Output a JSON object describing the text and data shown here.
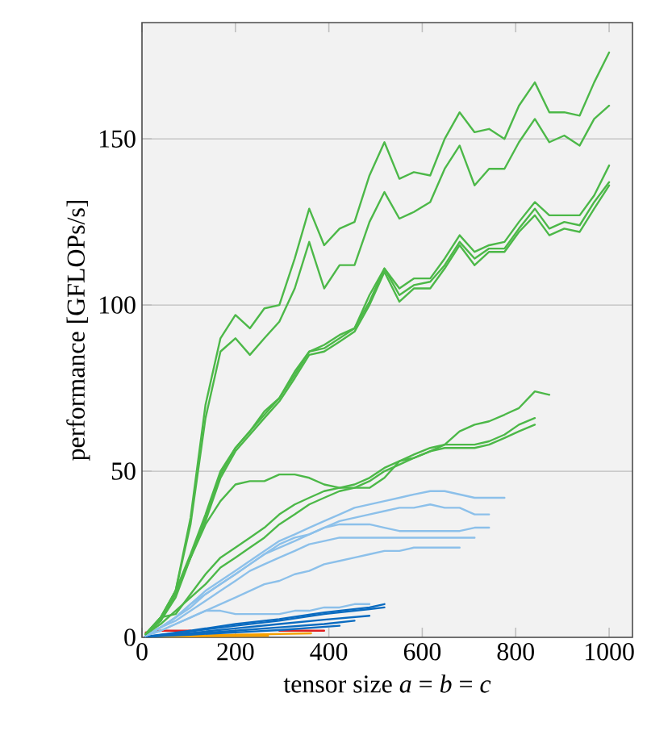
{
  "chart_data": {
    "type": "line",
    "xlabel": "tensor size *a* = *b* = *c*",
    "ylabel": "performance [GFLOPs/s]",
    "xlim": [
      0,
      1050
    ],
    "ylim": [
      0,
      185
    ],
    "xticks": [
      0,
      200,
      400,
      600,
      800,
      1000
    ],
    "yticks": [
      0,
      50,
      100,
      150
    ],
    "grid": "y",
    "series": [
      {
        "color": "#e02020",
        "x": [
          8,
          40,
          104,
          200,
          294,
          390
        ],
        "values": [
          1.5,
          2,
          2,
          null,
          2,
          2
        ]
      },
      {
        "color": "#f5a000",
        "x": [
          8,
          104,
          200,
          294,
          362
        ],
        "values": [
          0.3,
          0.5,
          0.8,
          1,
          1.2
        ]
      },
      {
        "color": "#f5a000",
        "x": [
          8,
          104,
          200,
          270
        ],
        "values": [
          0.2,
          0.3,
          0.4,
          0.5
        ]
      },
      {
        "color": "#0a6bc0",
        "x": [
          8,
          104,
          200,
          294,
          390,
          487,
          519
        ],
        "values": [
          0.2,
          2,
          4,
          5.5,
          7.5,
          9,
          10
        ]
      },
      {
        "color": "#0a6bc0",
        "x": [
          8,
          104,
          200,
          294,
          390,
          487,
          519
        ],
        "values": [
          0.2,
          1.8,
          3.5,
          5,
          7,
          8.5,
          9
        ]
      },
      {
        "color": "#0a6bc0",
        "x": [
          8,
          104,
          200,
          294,
          390,
          487
        ],
        "values": [
          0.2,
          1.3,
          2.7,
          4,
          5.3,
          6.5
        ]
      },
      {
        "color": "#0a6bc0",
        "x": [
          8,
          104,
          200,
          294,
          390,
          455
        ],
        "values": [
          0.2,
          1,
          2,
          3,
          4,
          5
        ]
      },
      {
        "color": "#0a6bc0",
        "x": [
          8,
          104,
          200,
          294,
          423
        ],
        "values": [
          0.2,
          0.8,
          1.5,
          2.2,
          3.5
        ]
      },
      {
        "color": "#8cc0ea",
        "x": [
          8,
          40,
          72,
          104,
          136,
          168,
          200,
          231,
          262,
          294,
          327,
          358,
          390,
          423,
          455,
          487,
          519,
          551,
          582,
          617,
          648,
          680,
          712,
          743,
          776
        ],
        "values": [
          0.5,
          3,
          6,
          10,
          14,
          17,
          20,
          23,
          26,
          29,
          31,
          33,
          35,
          37,
          39,
          40,
          41,
          42,
          43,
          44,
          44,
          43,
          42,
          42,
          42
        ]
      },
      {
        "color": "#8cc0ea",
        "x": [
          8,
          40,
          72,
          104,
          136,
          168,
          200,
          231,
          262,
          294,
          327,
          358,
          390,
          423,
          455,
          487,
          519,
          551,
          582,
          617,
          648,
          680,
          712,
          743
        ],
        "values": [
          0.5,
          3,
          6,
          10,
          13,
          16,
          19,
          22,
          25,
          27,
          29,
          31,
          33,
          35,
          36,
          37,
          38,
          39,
          39,
          40,
          39,
          39,
          37,
          37
        ]
      },
      {
        "color": "#8cc0ea",
        "x": [
          8,
          40,
          72,
          104,
          136,
          168,
          200,
          231,
          262,
          294,
          327,
          358,
          390,
          423,
          455,
          487,
          519,
          551,
          582,
          617,
          648,
          680,
          712,
          743
        ],
        "values": [
          0.5,
          3,
          6,
          9,
          13,
          16,
          19,
          22,
          25,
          28,
          30,
          31,
          33,
          34,
          34,
          34,
          33,
          32,
          32,
          32,
          32,
          32,
          33,
          33
        ]
      },
      {
        "color": "#8cc0ea",
        "x": [
          8,
          40,
          72,
          104,
          136,
          168,
          200,
          231,
          262,
          294,
          327,
          358,
          390,
          423,
          455,
          487,
          519,
          551,
          582,
          617,
          648,
          680,
          712
        ],
        "values": [
          0.5,
          3,
          5,
          8,
          11,
          14,
          17,
          20,
          22,
          24,
          26,
          28,
          29,
          30,
          30,
          30,
          30,
          30,
          30,
          30,
          30,
          30,
          30
        ]
      },
      {
        "color": "#8cc0ea",
        "x": [
          8,
          40,
          72,
          104,
          136,
          168,
          200,
          231,
          262,
          294,
          327,
          358,
          390,
          423,
          455,
          487,
          519,
          551,
          582,
          617,
          648,
          680
        ],
        "values": [
          0.5,
          2,
          4,
          6,
          8,
          10,
          12,
          14,
          16,
          17,
          19,
          20,
          22,
          23,
          24,
          25,
          26,
          26,
          27,
          27,
          27,
          27
        ]
      },
      {
        "color": "#8cc0ea",
        "x": [
          8,
          40,
          72,
          104,
          136,
          168,
          200,
          231,
          262,
          294,
          327,
          358,
          390,
          423,
          455,
          487
        ],
        "values": [
          0.5,
          2,
          4,
          6,
          8,
          8,
          7,
          7,
          7,
          7,
          8,
          8,
          9,
          9,
          10,
          10
        ]
      },
      {
        "color": "#4cb848",
        "x": [
          8,
          40,
          72,
          104,
          136,
          168,
          200,
          231,
          262,
          294,
          327,
          358,
          390,
          423,
          455,
          487,
          519,
          551,
          582,
          617,
          648,
          680,
          712,
          743,
          776,
          807,
          841,
          872
        ],
        "values": [
          1,
          5,
          12,
          24,
          34,
          41,
          46,
          47,
          47,
          49,
          49,
          48,
          46,
          45,
          45,
          45,
          48,
          53,
          54,
          56,
          58,
          62,
          64,
          65,
          67,
          69,
          74,
          73
        ]
      },
      {
        "color": "#4cb848",
        "x": [
          8,
          40,
          72,
          104,
          136,
          168,
          200,
          231,
          262,
          294,
          327,
          358,
          390,
          423,
          455,
          487,
          519,
          551,
          582,
          617,
          648,
          680,
          712,
          743,
          776,
          807,
          841
        ],
        "values": [
          1,
          6,
          7,
          13,
          19,
          24,
          27,
          30,
          33,
          37,
          40,
          42,
          44,
          45,
          46,
          48,
          51,
          53,
          55,
          57,
          58,
          58,
          58,
          59,
          61,
          64,
          66
        ]
      },
      {
        "color": "#4cb848",
        "x": [
          8,
          40,
          72,
          104,
          136,
          168,
          200,
          231,
          262,
          294,
          327,
          358,
          390,
          423,
          455,
          487,
          519,
          551,
          582,
          617,
          648,
          680,
          712,
          743,
          776,
          807,
          841
        ],
        "values": [
          1,
          4,
          8,
          12,
          16,
          21,
          24,
          27,
          30,
          34,
          37,
          40,
          42,
          44,
          45,
          47,
          50,
          52,
          54,
          56,
          57,
          57,
          57,
          58,
          60,
          62,
          64
        ]
      },
      {
        "color": "#4cb848",
        "x": [
          8,
          40,
          72,
          104,
          136,
          168,
          200,
          231,
          262,
          294,
          327,
          358,
          390,
          423,
          455,
          487,
          519,
          551,
          582,
          617,
          648,
          680,
          712,
          743,
          776,
          807,
          841,
          872,
          904,
          937,
          968,
          1000
        ],
        "values": [
          1,
          5,
          13,
          24,
          35,
          48,
          56,
          61,
          66,
          71,
          78,
          85,
          86,
          89,
          92,
          100,
          110,
          101,
          105,
          105,
          111,
          118,
          112,
          116,
          116,
          122,
          127,
          121,
          123,
          122,
          129,
          136
        ]
      },
      {
        "color": "#4cb848",
        "x": [
          8,
          40,
          72,
          104,
          136,
          168,
          200,
          231,
          262,
          294,
          327,
          358,
          390,
          423,
          455,
          487,
          519,
          551,
          582,
          617,
          648,
          680,
          712,
          743,
          776,
          807,
          841,
          872,
          904,
          937,
          968,
          1000
        ],
        "values": [
          1,
          6,
          14,
          24,
          36,
          49,
          57,
          62,
          67,
          72,
          79,
          86,
          87,
          90,
          93,
          101,
          111,
          103,
          106,
          107,
          112,
          119,
          114,
          117,
          117,
          123,
          129,
          123,
          125,
          124,
          131,
          137
        ]
      },
      {
        "color": "#4cb848",
        "x": [
          8,
          40,
          72,
          104,
          136,
          168,
          200,
          231,
          262,
          294,
          327,
          358,
          390,
          423,
          455,
          487,
          519,
          551,
          582,
          617,
          648,
          680,
          712,
          743,
          776,
          807,
          841,
          872,
          904,
          937,
          968,
          1000
        ],
        "values": [
          1,
          6,
          14,
          25,
          37,
          50,
          57,
          62,
          68,
          72,
          80,
          86,
          88,
          91,
          93,
          103,
          111,
          105,
          108,
          108,
          114,
          121,
          116,
          118,
          119,
          125,
          131,
          127,
          127,
          127,
          133,
          142
        ]
      },
      {
        "color": "#4cb848",
        "x": [
          8,
          40,
          72,
          104,
          136,
          168,
          200,
          231,
          262,
          294,
          327,
          358,
          390,
          423,
          455,
          487,
          519,
          551,
          582,
          617,
          648,
          680,
          712,
          743,
          776,
          807,
          841,
          872,
          904,
          937,
          968,
          1000
        ],
        "values": [
          1,
          5,
          14,
          34,
          66,
          86,
          90,
          85,
          90,
          95,
          105,
          119,
          105,
          112,
          112,
          125,
          134,
          126,
          128,
          131,
          141,
          148,
          136,
          141,
          141,
          149,
          156,
          149,
          151,
          148,
          156,
          160
        ]
      },
      {
        "color": "#4cb848",
        "x": [
          8,
          40,
          72,
          104,
          136,
          168,
          200,
          231,
          262,
          294,
          327,
          358,
          390,
          423,
          455,
          487,
          519,
          551,
          582,
          617,
          648,
          680,
          712,
          743,
          776,
          807,
          841,
          872,
          904,
          937,
          968,
          1000
        ],
        "values": [
          1,
          5,
          14,
          36,
          70,
          90,
          97,
          93,
          99,
          100,
          114,
          129,
          118,
          123,
          125,
          139,
          149,
          138,
          140,
          139,
          150,
          158,
          152,
          153,
          150,
          160,
          167,
          158,
          158,
          157,
          167,
          176
        ]
      }
    ]
  }
}
